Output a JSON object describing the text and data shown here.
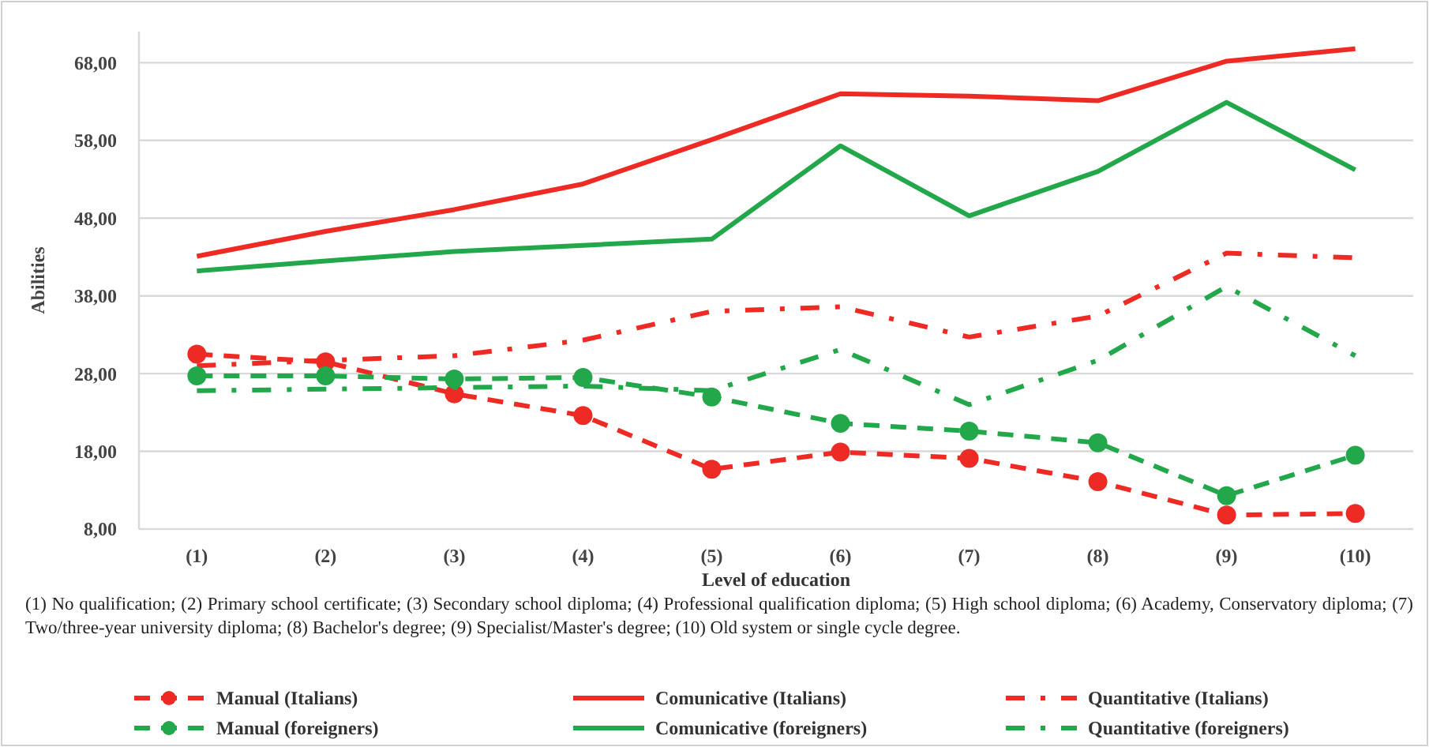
{
  "chart_data": {
    "type": "line",
    "xlabel": "Level of education",
    "ylabel": "Abilities",
    "categories": [
      "(1)",
      "(2)",
      "(3)",
      "(4)",
      "(5)",
      "(6)",
      "(7)",
      "(8)",
      "(9)",
      "(10)"
    ],
    "ylim": [
      8,
      72
    ],
    "yticks": [
      {
        "value": 8,
        "label": "8,00"
      },
      {
        "value": 18,
        "label": "18,00"
      },
      {
        "value": 28,
        "label": "28,00"
      },
      {
        "value": 38,
        "label": "38,00"
      },
      {
        "value": 48,
        "label": "48,00"
      },
      {
        "value": 58,
        "label": "58,00"
      },
      {
        "value": 68,
        "label": "68,00"
      }
    ],
    "grid": "y",
    "legend": "bottom",
    "annotations": [
      "(1) No qualification;  (2) Primary school certificate; (3) Secondary school diploma; (4) Professional qualification  diploma; (5) High school diploma; (6) Academy, Conservatory diploma; (7) Two/three-year university diploma; (8) Bachelor's degree; (9) Specialist/Master's degree; (10) Old system or single cycle degree."
    ],
    "series": [
      {
        "name": "Manual (Italians)",
        "color": "#ee2a24",
        "line_style": "dashed",
        "marker": "circle",
        "values": [
          30.5,
          29.5,
          25.4,
          22.6,
          15.7,
          17.9,
          17.1,
          14.1,
          9.8,
          10.0
        ]
      },
      {
        "name": "Comunicative (Italians)",
        "color": "#ee2a24",
        "line_style": "solid",
        "marker": "none",
        "values": [
          43.1,
          46.3,
          49.1,
          52.4,
          58.1,
          64.0,
          63.7,
          63.1,
          68.2,
          69.8
        ]
      },
      {
        "name": "Quantitative (Italians)",
        "color": "#ee2a24",
        "line_style": "dashdot",
        "marker": "none",
        "values": [
          29.0,
          29.7,
          30.3,
          32.3,
          36.0,
          36.6,
          32.7,
          35.4,
          43.5,
          42.9
        ]
      },
      {
        "name": "Manual (foreigners)",
        "color": "#22a84a",
        "line_style": "dashed",
        "marker": "circle",
        "values": [
          27.7,
          27.7,
          27.3,
          27.5,
          25.0,
          21.6,
          20.6,
          19.1,
          12.3,
          17.5
        ]
      },
      {
        "name": "Comunicative (foreigners)",
        "color": "#22a84a",
        "line_style": "solid",
        "marker": "none",
        "values": [
          41.2,
          42.5,
          43.7,
          44.5,
          45.3,
          57.3,
          48.3,
          54.0,
          62.9,
          54.2
        ]
      },
      {
        "name": "Quantitative (foreigners)",
        "color": "#22a84a",
        "line_style": "dashdot",
        "marker": "none",
        "values": [
          25.8,
          26.0,
          26.2,
          26.4,
          25.8,
          31.1,
          24.0,
          29.7,
          39.2,
          30.3
        ]
      }
    ]
  }
}
